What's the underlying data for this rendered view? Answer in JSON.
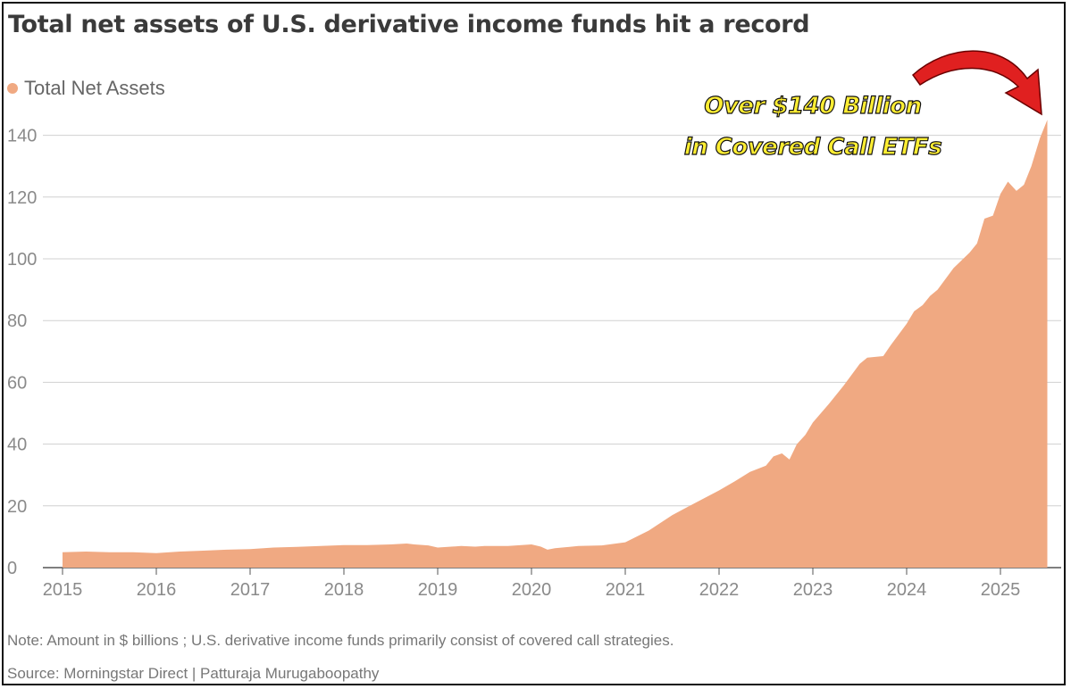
{
  "title": "Total net assets of U.S. derivative income funds hit a record",
  "note": "Note: Amount in $ billions ; U.S. derivative income funds primarily consist of covered call strategies.",
  "source": "Source: Morningstar Direct  | Patturaja Murugaboopathy",
  "annotation": {
    "line1": "Over $140 Billion",
    "line2": "in Covered Call ETFs"
  },
  "colors": {
    "area": "#f0a982",
    "grid": "#d0d0d0",
    "arrow": "#e02020"
  },
  "chart_data": {
    "type": "area",
    "title": "Total net assets of U.S. derivative income funds hit a record",
    "xlabel": "",
    "ylabel": "",
    "legend_position": "top-left",
    "grid": true,
    "ylim": [
      0,
      140
    ],
    "xlim": [
      2015,
      2025.75
    ],
    "y_ticks": [
      0,
      20,
      40,
      60,
      80,
      100,
      120,
      140
    ],
    "x_ticks": [
      "2015",
      "2016",
      "2017",
      "2018",
      "2019",
      "2020",
      "2021",
      "2022",
      "2023",
      "2024",
      "2025"
    ],
    "series": [
      {
        "name": "Total Net Assets",
        "x": [
          2015.0,
          2015.25,
          2015.5,
          2015.75,
          2016.0,
          2016.25,
          2016.5,
          2016.75,
          2017.0,
          2017.25,
          2017.5,
          2017.75,
          2018.0,
          2018.25,
          2018.5,
          2018.67,
          2018.75,
          2018.9,
          2019.0,
          2019.25,
          2019.4,
          2019.5,
          2019.75,
          2020.0,
          2020.1,
          2020.17,
          2020.25,
          2020.5,
          2020.75,
          2021.0,
          2021.25,
          2021.5,
          2021.75,
          2022.0,
          2022.17,
          2022.33,
          2022.5,
          2022.58,
          2022.67,
          2022.75,
          2022.83,
          2022.92,
          2023.0,
          2023.17,
          2023.33,
          2023.5,
          2023.58,
          2023.75,
          2023.83,
          2024.0,
          2024.08,
          2024.17,
          2024.25,
          2024.33,
          2024.5,
          2024.67,
          2024.75,
          2024.83,
          2024.92,
          2025.0,
          2025.08,
          2025.17,
          2025.25,
          2025.33,
          2025.42,
          2025.5
        ],
        "values": [
          5.0,
          5.2,
          5.0,
          5.0,
          4.7,
          5.2,
          5.5,
          5.8,
          6.0,
          6.5,
          6.7,
          7.0,
          7.3,
          7.3,
          7.5,
          7.8,
          7.5,
          7.2,
          6.5,
          7.0,
          6.8,
          7.0,
          7.0,
          7.5,
          6.8,
          5.8,
          6.3,
          7.0,
          7.2,
          8.2,
          12.0,
          17.0,
          21.0,
          25.0,
          28.0,
          31.0,
          33.0,
          36.0,
          37.0,
          35.0,
          40.0,
          43.0,
          47.0,
          53.0,
          59.0,
          66.0,
          68.0,
          68.5,
          72.0,
          79.0,
          83.0,
          85.0,
          88.0,
          90.0,
          97.0,
          102.0,
          105.0,
          113.0,
          114.0,
          121.0,
          125.0,
          122.0,
          124.0,
          130.0,
          139.0,
          145.0
        ]
      }
    ]
  }
}
